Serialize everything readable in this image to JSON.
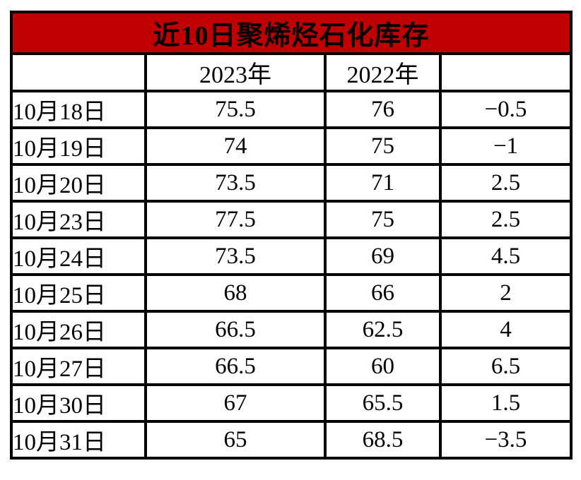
{
  "title": "近10日聚烯烃石化库存",
  "colors": {
    "title_bg": "#C00000",
    "title_text": "#FFFFFF",
    "border": "#000000",
    "cell_bg": "#FFFFFF"
  },
  "table": {
    "headers": [
      "",
      "2023年",
      "2022年",
      ""
    ],
    "rows": [
      {
        "date": "10月18日",
        "y2023": "75.5",
        "y2022": "76",
        "diff": "−0.5"
      },
      {
        "date": "10月19日",
        "y2023": "74",
        "y2022": "75",
        "diff": "−1"
      },
      {
        "date": "10月20日",
        "y2023": "73.5",
        "y2022": "71",
        "diff": "2.5"
      },
      {
        "date": "10月23日",
        "y2023": "77.5",
        "y2022": "75",
        "diff": "2.5"
      },
      {
        "date": "10月24日",
        "y2023": "73.5",
        "y2022": "69",
        "diff": "4.5"
      },
      {
        "date": "10月25日",
        "y2023": "68",
        "y2022": "66",
        "diff": "2"
      },
      {
        "date": "10月26日",
        "y2023": "66.5",
        "y2022": "62.5",
        "diff": "4"
      },
      {
        "date": "10月27日",
        "y2023": "66.5",
        "y2022": "60",
        "diff": "6.5"
      },
      {
        "date": "10月30日",
        "y2023": "67",
        "y2022": "65.5",
        "diff": "1.5"
      },
      {
        "date": "10月31日",
        "y2023": "65",
        "y2022": "68.5",
        "diff": "−3.5"
      }
    ]
  },
  "chart_data": {
    "type": "table",
    "title": "近10日聚烯烃石化库存",
    "categories": [
      "10月18日",
      "10月19日",
      "10月20日",
      "10月23日",
      "10月24日",
      "10月25日",
      "10月26日",
      "10月27日",
      "10月30日",
      "10月31日"
    ],
    "series": [
      {
        "name": "2023年",
        "values": [
          75.5,
          74,
          73.5,
          77.5,
          73.5,
          68,
          66.5,
          66.5,
          67,
          65
        ]
      },
      {
        "name": "2022年",
        "values": [
          76,
          75,
          71,
          75,
          69,
          66,
          62.5,
          60,
          65.5,
          68.5
        ]
      },
      {
        "name": "",
        "values": [
          -0.5,
          -1,
          2.5,
          2.5,
          4.5,
          2,
          4,
          6.5,
          1.5,
          -3.5
        ]
      }
    ]
  }
}
